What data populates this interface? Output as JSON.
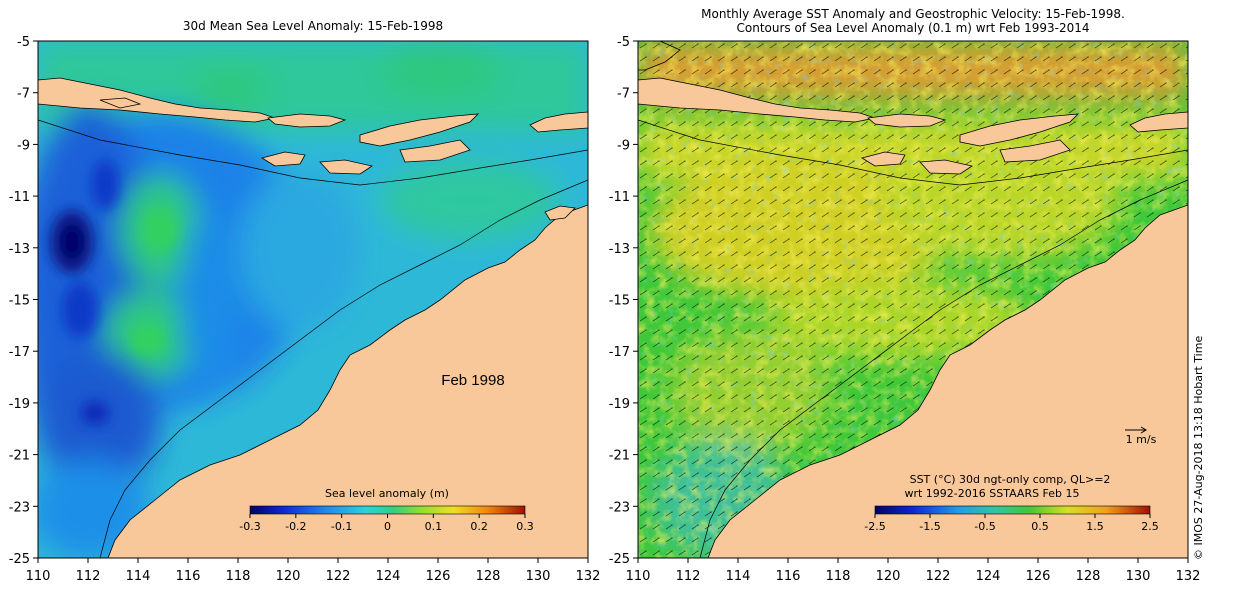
{
  "left_panel": {
    "title": "30d Mean Sea Level Anomaly: 15-Feb-1998",
    "annotation": "Feb 1998",
    "colorbar": {
      "label": "Sea level anomaly (m)",
      "ticks": [
        "-0.3",
        "-0.2",
        "-0.1",
        "0",
        "0.1",
        "0.2",
        "0.3"
      ],
      "min": -0.3,
      "max": 0.3
    }
  },
  "right_panel": {
    "title_line1": "Monthly Average SST Anomaly  and Geostrophic Velocity: 15-Feb-1998.",
    "title_line2": "Contours of Sea Level Anomaly (0.1 m) wrt Feb 1993-2014",
    "vector_scale_label": "1 m/s",
    "sst_note_line1": "SST (°C) 30d ngt-only comp, QL>=2",
    "sst_note_line2": "wrt 1992-2016 SSTAARS Feb 15",
    "colorbar": {
      "ticks": [
        "-2.5",
        "-1.5",
        "-0.5",
        "0.5",
        "1.5",
        "2.5"
      ],
      "min": -2.5,
      "max": 2.5
    }
  },
  "axes": {
    "lon_ticks": [
      "110",
      "112",
      "114",
      "116",
      "118",
      "120",
      "122",
      "124",
      "126",
      "128",
      "130",
      "132"
    ],
    "lat_ticks": [
      "-5",
      "-7",
      "-9",
      "-11",
      "-13",
      "-15",
      "-17",
      "-19",
      "-21",
      "-23",
      "-25"
    ],
    "lon_range": [
      110,
      132
    ],
    "lat_range": [
      -25,
      -5
    ]
  },
  "credit": "© IMOS 27-Aug-2018 13:18 Hobart Time",
  "colors": {
    "land": "#f9c89a",
    "ocean_deep_neg": "#0a1a8a",
    "ocean_neg": "#1e70e0",
    "ocean_mid": "#2ec0d0",
    "ocean_pos": "#2ecc70",
    "sst_green": "#3ec83a",
    "sst_yellow": "#e8e020",
    "sst_orange": "#f0a030"
  }
}
